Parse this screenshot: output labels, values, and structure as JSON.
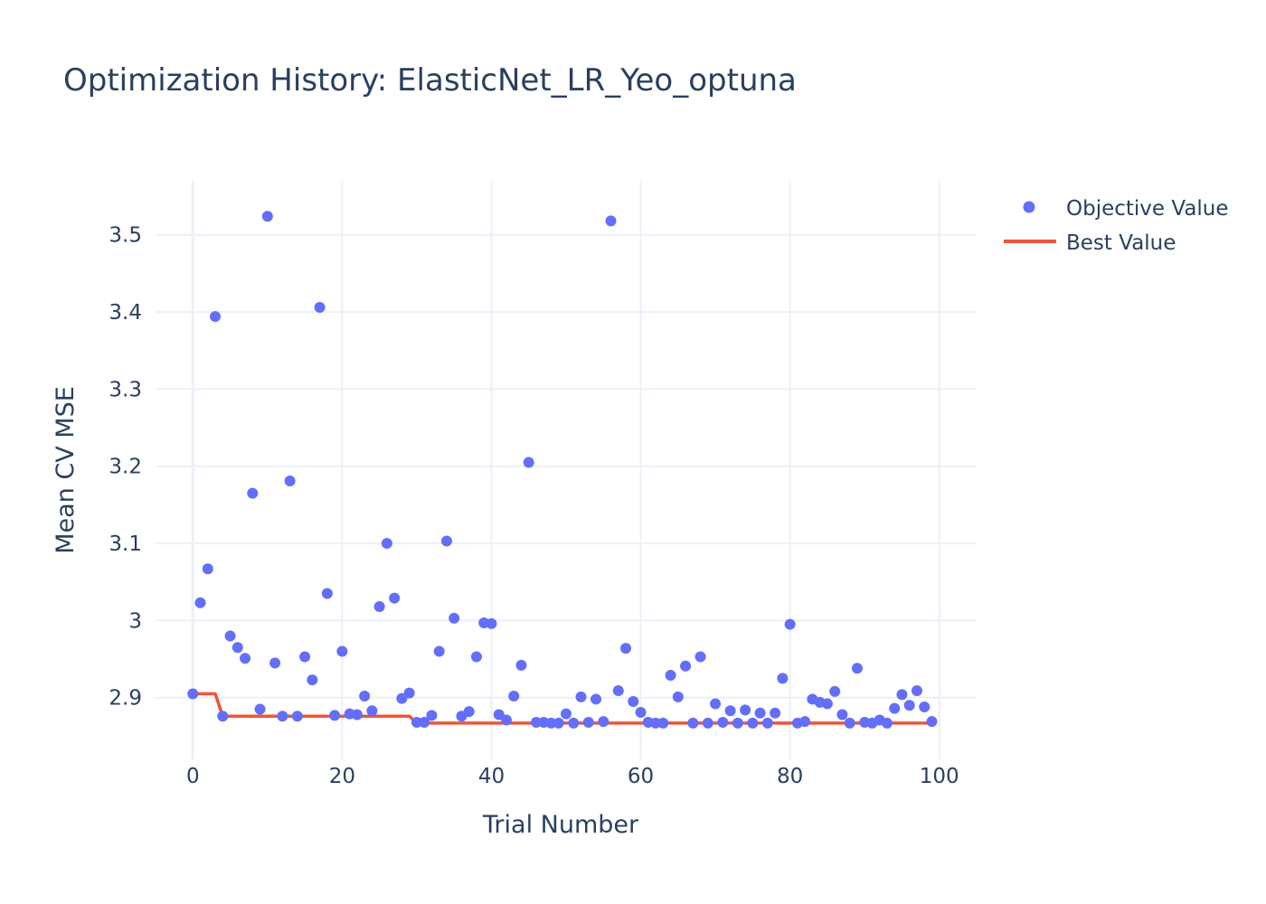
{
  "chart_data": {
    "type": "scatter",
    "title": "Optimization History: ElasticNet_LR_Yeo_optuna",
    "xlabel": "Trial Number",
    "ylabel": "Mean CV MSE",
    "xlim": [
      -5,
      105
    ],
    "ylim": [
      2.82,
      3.57
    ],
    "xticks": [
      0,
      20,
      40,
      60,
      80,
      100
    ],
    "xtick_labels": [
      "0",
      "20",
      "40",
      "60",
      "80",
      "100"
    ],
    "yticks": [
      2.9,
      3.0,
      3.1,
      3.2,
      3.3,
      3.4,
      3.5
    ],
    "ytick_labels": [
      "2.9",
      "3",
      "3.1",
      "3.2",
      "3.3",
      "3.4",
      "3.5"
    ],
    "grid": true,
    "legend_position": "top-right",
    "series": [
      {
        "name": "Objective Value",
        "mode": "markers",
        "color": "#636efa",
        "x": [
          0,
          1,
          2,
          3,
          4,
          5,
          6,
          7,
          8,
          9,
          10,
          11,
          12,
          13,
          14,
          15,
          16,
          17,
          18,
          19,
          20,
          21,
          22,
          23,
          24,
          25,
          26,
          27,
          28,
          29,
          30,
          31,
          32,
          33,
          34,
          35,
          36,
          37,
          38,
          39,
          40,
          41,
          42,
          43,
          44,
          45,
          46,
          47,
          48,
          49,
          50,
          51,
          52,
          53,
          54,
          55,
          56,
          57,
          58,
          59,
          60,
          61,
          62,
          63,
          64,
          65,
          66,
          67,
          68,
          69,
          70,
          71,
          72,
          73,
          74,
          75,
          76,
          77,
          78,
          79,
          80,
          81,
          82,
          83,
          84,
          85,
          86,
          87,
          88,
          89,
          90,
          91,
          92,
          93,
          94,
          95,
          96,
          97,
          98,
          99
        ],
        "y": [
          2.905,
          3.023,
          3.067,
          3.394,
          2.876,
          2.98,
          2.965,
          2.951,
          3.165,
          2.885,
          3.524,
          2.945,
          2.876,
          3.181,
          2.876,
          2.953,
          2.923,
          3.406,
          3.035,
          2.877,
          2.96,
          2.879,
          2.878,
          2.902,
          2.883,
          3.018,
          3.1,
          3.029,
          2.899,
          2.906,
          2.868,
          2.868,
          2.877,
          2.96,
          3.103,
          3.003,
          2.876,
          2.882,
          2.953,
          2.997,
          2.996,
          2.878,
          2.871,
          2.902,
          2.942,
          3.205,
          2.868,
          2.868,
          2.867,
          2.867,
          2.879,
          2.867,
          2.901,
          2.868,
          2.898,
          2.869,
          3.518,
          2.909,
          2.964,
          2.895,
          2.881,
          2.868,
          2.867,
          2.867,
          2.929,
          2.901,
          2.941,
          2.867,
          2.953,
          2.867,
          2.892,
          2.868,
          2.883,
          2.867,
          2.884,
          2.867,
          2.88,
          2.867,
          2.88,
          2.925,
          2.995,
          2.867,
          2.869,
          2.898,
          2.894,
          2.892,
          2.908,
          2.878,
          2.867,
          2.938,
          2.868,
          2.867,
          2.871,
          2.867,
          2.886,
          2.904,
          2.89,
          2.909,
          2.888,
          2.869
        ]
      },
      {
        "name": "Best Value",
        "mode": "line",
        "color": "#ef553b",
        "x": [
          0,
          3,
          4,
          29,
          30,
          99
        ],
        "y": [
          2.905,
          2.905,
          2.876,
          2.876,
          2.867,
          2.867
        ]
      }
    ]
  }
}
